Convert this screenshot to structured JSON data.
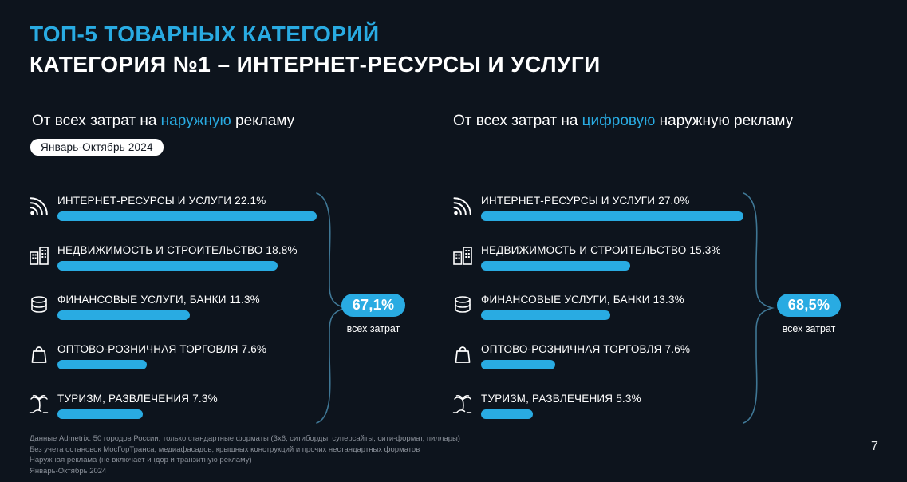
{
  "slide": {
    "title_line1": "ТОП-5 ТОВАРНЫХ КАТЕГОРИЙ",
    "title_line2": "КАТЕГОРИЯ №1 – ИНТЕРНЕТ-РЕСУРСЫ И УСЛУГИ",
    "page_number": "7"
  },
  "colors": {
    "background": "#0d141d",
    "accent": "#29abe2",
    "bar": "#29abe2",
    "footer_text": "#8a9099"
  },
  "left_panel": {
    "subtitle_prefix": "От всех затрат на ",
    "subtitle_highlight": "наружную",
    "subtitle_suffix": " рекламу",
    "period_badge": "Январь-Октябрь 2024",
    "items": [
      {
        "icon": "internet-icon",
        "label": "ИНТЕРНЕТ-РЕСУРСЫ И УСЛУГИ 22.1%",
        "value": 22.1
      },
      {
        "icon": "real-estate-icon",
        "label": "НЕДВИЖИМОСТЬ И СТРОИТЕЛЬСТВО 18.8%",
        "value": 18.8
      },
      {
        "icon": "finance-icon",
        "label": "ФИНАНСОВЫЕ УСЛУГИ, БАНКИ 11.3%",
        "value": 11.3
      },
      {
        "icon": "retail-icon",
        "label": "ОПТОВО-РОЗНИЧНАЯ ТОРГОВЛЯ 7.6%",
        "value": 7.6
      },
      {
        "icon": "tourism-icon",
        "label": "ТУРИЗМ, РАЗВЛЕЧЕНИЯ 7.3%",
        "value": 7.3
      }
    ],
    "total_badge": "67,1%",
    "total_caption": "всех затрат"
  },
  "right_panel": {
    "subtitle_prefix": "От всех затрат на ",
    "subtitle_highlight": "цифровую",
    "subtitle_suffix": " наружную рекламу",
    "items": [
      {
        "icon": "internet-icon",
        "label": "ИНТЕРНЕТ-РЕСУРСЫ И УСЛУГИ 27.0%",
        "value": 27.0
      },
      {
        "icon": "real-estate-icon",
        "label": "НЕДВИЖИМОСТЬ И СТРОИТЕЛЬСТВО 15.3%",
        "value": 15.3
      },
      {
        "icon": "finance-icon",
        "label": "ФИНАНСОВЫЕ УСЛУГИ, БАНКИ 13.3%",
        "value": 13.3
      },
      {
        "icon": "retail-icon",
        "label": "ОПТОВО-РОЗНИЧНАЯ ТОРГОВЛЯ 7.6%",
        "value": 7.6
      },
      {
        "icon": "tourism-icon",
        "label": "ТУРИЗМ, РАЗВЛЕЧЕНИЯ 5.3%",
        "value": 5.3
      }
    ],
    "total_badge": "68,5%",
    "total_caption": "всех затрат"
  },
  "footer": {
    "lines": [
      "Данные Admetrix: 50 городов России, только стандартные форматы (3х6, ситиборды, суперсайты, сити-формат, пиллары)",
      "Без учета остановок МосГорТранса, медиафасадов, крышных конструкций и прочих нестандартных форматов",
      "Наружная реклама (не включает индор и транзитную рекламу)",
      "Январь-Октябрь 2024"
    ]
  },
  "chart_data": [
    {
      "type": "bar",
      "orientation": "horizontal",
      "title": "От всех затрат на наружную рекламу",
      "subtitle": "Январь-Октябрь 2024",
      "categories": [
        "ИНТЕРНЕТ-РЕСУРСЫ И УСЛУГИ",
        "НЕДВИЖИМОСТЬ И СТРОИТЕЛЬСТВО",
        "ФИНАНСОВЫЕ УСЛУГИ, БАНКИ",
        "ОПТОВО-РОЗНИЧНАЯ ТОРГОВЛЯ",
        "ТУРИЗМ, РАЗВЛЕЧЕНИЯ"
      ],
      "values": [
        22.1,
        18.8,
        11.3,
        7.6,
        7.3
      ],
      "unit": "%",
      "total_annotation": "67,1% всех затрат",
      "legend": "none",
      "grid": false
    },
    {
      "type": "bar",
      "orientation": "horizontal",
      "title": "От всех затрат на цифровую наружную рекламу",
      "subtitle": "Январь-Октябрь 2024",
      "categories": [
        "ИНТЕРНЕТ-РЕСУРСЫ И УСЛУГИ",
        "НЕДВИЖИМОСТЬ И СТРОИТЕЛЬСТВО",
        "ФИНАНСОВЫЕ УСЛУГИ, БАНКИ",
        "ОПТОВО-РОЗНИЧНАЯ ТОРГОВЛЯ",
        "ТУРИЗМ, РАЗВЛЕЧЕНИЯ"
      ],
      "values": [
        27.0,
        15.3,
        13.3,
        7.6,
        5.3
      ],
      "unit": "%",
      "total_annotation": "68,5% всех затрат",
      "legend": "none",
      "grid": false
    }
  ]
}
